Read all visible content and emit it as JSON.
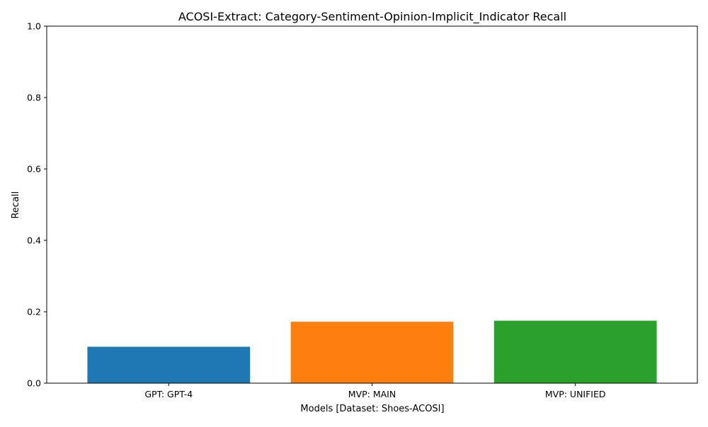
{
  "chart_data": {
    "type": "bar",
    "title": "ACOSI-Extract: Category-Sentiment-Opinion-Implicit_Indicator Recall",
    "xlabel": "Models [Dataset: Shoes-ACOSI]",
    "ylabel": "Recall",
    "categories": [
      "GPT: GPT-4",
      "MVP: MAIN",
      "MVP: UNIFIED"
    ],
    "values": [
      0.102,
      0.172,
      0.175
    ],
    "colors": [
      "#1f77b4",
      "#ff7f0e",
      "#2ca02c"
    ],
    "ylim": [
      0,
      1.0
    ],
    "yticks": [
      0.0,
      0.2,
      0.4,
      0.6,
      0.8,
      1.0
    ],
    "ytick_labels": [
      "0.0",
      "0.2",
      "0.4",
      "0.6",
      "0.8",
      "1.0"
    ],
    "grid": false,
    "legend": "none"
  }
}
